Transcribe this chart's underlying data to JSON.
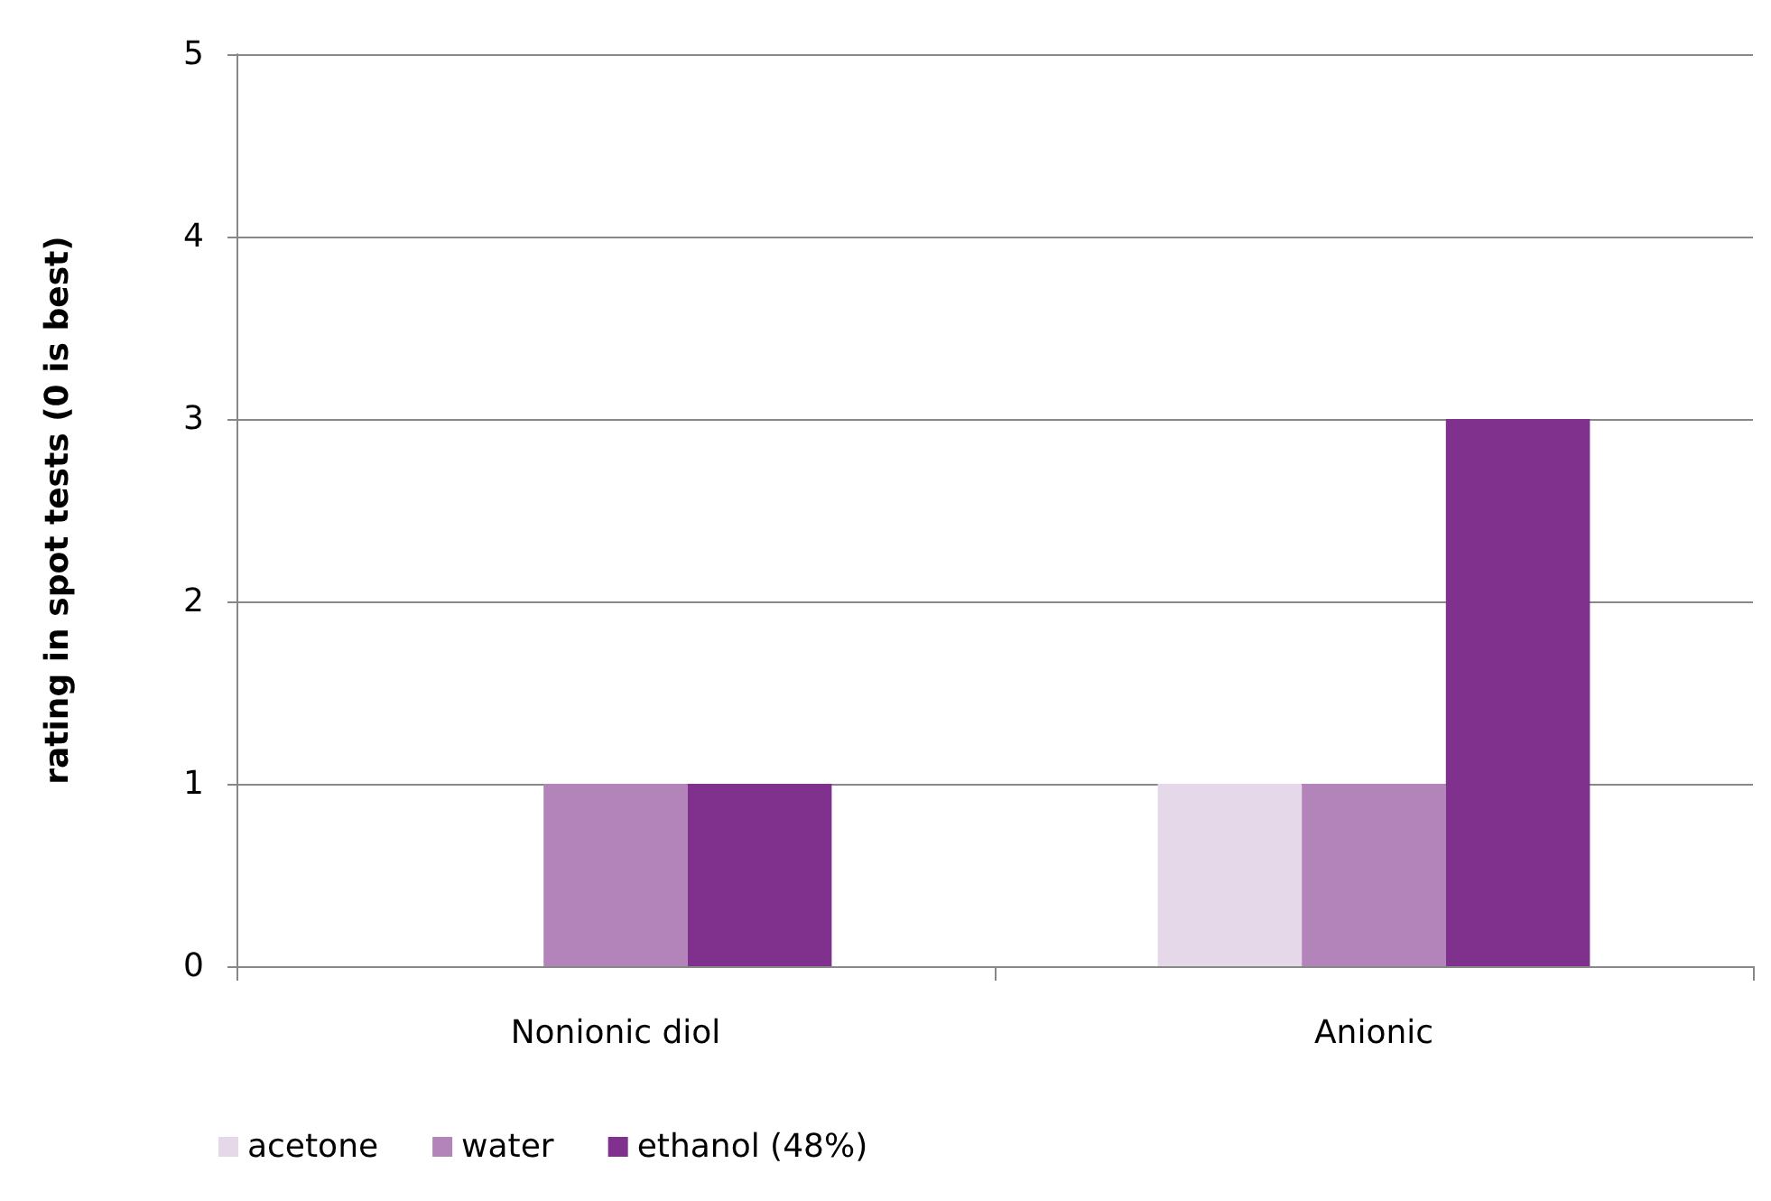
{
  "chart_data": {
    "type": "bar",
    "ylabel": "rating in spot tests (0 is best)",
    "categories": [
      "Nonionic diol",
      "Anionic"
    ],
    "series": [
      {
        "name": "acetone",
        "color": "#e4d8e9",
        "values": [
          0,
          1
        ]
      },
      {
        "name": "water",
        "color": "#b284b9",
        "values": [
          1,
          1
        ]
      },
      {
        "name": "ethanol (48%)",
        "color": "#80318e",
        "values": [
          1,
          3
        ]
      }
    ],
    "ylim": [
      0,
      5
    ],
    "yticks": [
      0,
      1,
      2,
      3,
      4,
      5
    ],
    "grid": "y",
    "legend": "bottom left"
  }
}
